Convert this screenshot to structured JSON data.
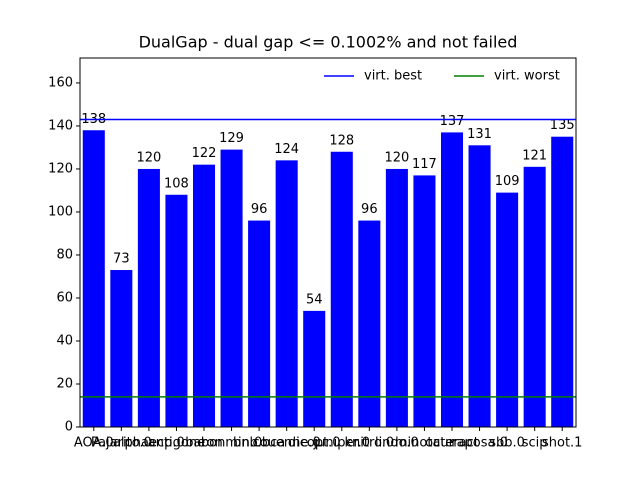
{
  "chart_data": {
    "type": "bar",
    "title": "DualGap - dual gap <= 0.1002% and not failed",
    "categories": [
      "AOA.0",
      "Pajarito.0",
      "alphaecp.0",
      "antigone",
      "baron",
      "bonmin.0",
      "bnb.bca",
      "couenne.0",
      "dicopt.0",
      "juniper.0",
      "knitro.0",
      "lindo.0",
      "minotaur",
      "octeract",
      "raposa.0",
      "sbb.0",
      "scip",
      "shot.1"
    ],
    "values": [
      138,
      73,
      120,
      108,
      122,
      129,
      96,
      124,
      54,
      128,
      96,
      120,
      117,
      137,
      131,
      109,
      121,
      135
    ],
    "color": "#0000ff",
    "ylim": [
      0,
      171.6
    ],
    "yticks": [
      0,
      20,
      40,
      60,
      80,
      100,
      120,
      140,
      160
    ],
    "reference_lines": [
      {
        "name": "virt. best",
        "value": 143,
        "color": "#0000ff"
      },
      {
        "name": "virt. worst",
        "value": 14,
        "color": "#008000"
      }
    ],
    "legend": "upper right"
  }
}
